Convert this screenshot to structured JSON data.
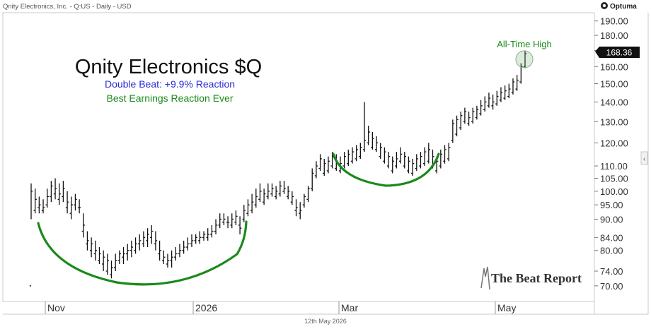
{
  "header": {
    "left": "Qnity Electronics, Inc. - Q:US - Daily - USD",
    "logo_text": "Optuma"
  },
  "footer": {
    "date": "12th May 2026"
  },
  "annotations": {
    "title": "Qnity Electronics $Q",
    "line1": "Double Beat: +9.9% Reaction",
    "line2": "Best Earnings Reaction Ever",
    "ath_label": "All-Time High"
  },
  "brand": {
    "name": "The Beat Report"
  },
  "colors": {
    "title": "#111111",
    "line1": "#2b2bd6",
    "green": "#1a8a1a",
    "bars": "#111111",
    "axis": "#333333"
  },
  "chart_data": {
    "type": "ohlc",
    "title": "Qnity Electronics $Q",
    "ylim": [
      66,
      196
    ],
    "y_scale": "log",
    "x_tick_labels": [
      "Nov",
      "2026",
      "Mar",
      "May"
    ],
    "y_tick_labels": [
      "190.00",
      "180.00",
      "170.00",
      "160.00",
      "150.00",
      "140.00",
      "130.00",
      "120.00",
      "110.00",
      "105.00",
      "100.00",
      "95.00",
      "90.00",
      "84.00",
      "80.00",
      "74.00",
      "70.00"
    ],
    "last_price_label": "168.36",
    "series": [
      {
        "values": [
          [
            70,
            103,
            90,
            100
          ],
          [
            93,
            101,
            92,
            97
          ],
          [
            94,
            98,
            92,
            95
          ],
          [
            93,
            97,
            92,
            94
          ],
          [
            95,
            101,
            94,
            98
          ],
          [
            98,
            104,
            96,
            102
          ],
          [
            99,
            105,
            97,
            101
          ],
          [
            97,
            103,
            95,
            99
          ],
          [
            98,
            104,
            96,
            101
          ],
          [
            94,
            100,
            92,
            96
          ],
          [
            92,
            98,
            90,
            95
          ],
          [
            95,
            99,
            93,
            97
          ],
          [
            94,
            97,
            92,
            94
          ],
          [
            86,
            92,
            84,
            88
          ],
          [
            82,
            86,
            80,
            83
          ],
          [
            80,
            84,
            78,
            82
          ],
          [
            79,
            83,
            77,
            80
          ],
          [
            77,
            81,
            76,
            79
          ],
          [
            76,
            80,
            74,
            78
          ],
          [
            74,
            79,
            73,
            77
          ],
          [
            73,
            77,
            72,
            75
          ],
          [
            75,
            79,
            74,
            77
          ],
          [
            77,
            80,
            76,
            79
          ],
          [
            78,
            81,
            76,
            79
          ],
          [
            79,
            82,
            77,
            80
          ],
          [
            80,
            83,
            78,
            81
          ],
          [
            80,
            84,
            79,
            82
          ],
          [
            82,
            85,
            80,
            83
          ],
          [
            82,
            86,
            81,
            84
          ],
          [
            83,
            87,
            81,
            85
          ],
          [
            84,
            88,
            82,
            86
          ],
          [
            82,
            86,
            80,
            83
          ],
          [
            79,
            83,
            77,
            80
          ],
          [
            77,
            80,
            76,
            78
          ],
          [
            76,
            79,
            75,
            77
          ],
          [
            77,
            80,
            75,
            78
          ],
          [
            78,
            81,
            77,
            79
          ],
          [
            79,
            82,
            78,
            80
          ],
          [
            80,
            83,
            79,
            81
          ],
          [
            81,
            84,
            80,
            82
          ],
          [
            82,
            85,
            81,
            83
          ],
          [
            83,
            85,
            82,
            84
          ],
          [
            83,
            86,
            82,
            84
          ],
          [
            84,
            86,
            83,
            85
          ],
          [
            84,
            87,
            83,
            85
          ],
          [
            85,
            88,
            84,
            86
          ],
          [
            86,
            90,
            85,
            88
          ],
          [
            88,
            92,
            87,
            90
          ],
          [
            89,
            92,
            88,
            90
          ],
          [
            89,
            91,
            87,
            89
          ],
          [
            88,
            92,
            87,
            90
          ],
          [
            89,
            93,
            88,
            91
          ],
          [
            88,
            91,
            85,
            87
          ],
          [
            90,
            95,
            89,
            93
          ],
          [
            92,
            97,
            91,
            95
          ],
          [
            93,
            99,
            92,
            96
          ],
          [
            95,
            101,
            94,
            98
          ],
          [
            97,
            103,
            96,
            100
          ],
          [
            96,
            101,
            95,
            99
          ],
          [
            98,
            103,
            97,
            100
          ],
          [
            99,
            103,
            98,
            101
          ],
          [
            98,
            102,
            97,
            100
          ],
          [
            99,
            104,
            98,
            102
          ],
          [
            100,
            104,
            99,
            101
          ],
          [
            98,
            102,
            97,
            100
          ],
          [
            96,
            100,
            95,
            98
          ],
          [
            93,
            97,
            91,
            94
          ],
          [
            92,
            96,
            90,
            93
          ],
          [
            95,
            99,
            94,
            98
          ],
          [
            97,
            102,
            96,
            101
          ],
          [
            101,
            109,
            100,
            107
          ],
          [
            106,
            112,
            105,
            110
          ],
          [
            109,
            115,
            108,
            113
          ],
          [
            107,
            113,
            106,
            111
          ],
          [
            108,
            114,
            107,
            112
          ],
          [
            110,
            116,
            109,
            114
          ],
          [
            109,
            115,
            108,
            112
          ],
          [
            108,
            114,
            107,
            111
          ],
          [
            110,
            116,
            109,
            114
          ],
          [
            111,
            117,
            110,
            115
          ],
          [
            112,
            118,
            111,
            116
          ],
          [
            113,
            119,
            112,
            117
          ],
          [
            114,
            120,
            113,
            118
          ],
          [
            117,
            140,
            116,
            121
          ],
          [
            120,
            128,
            119,
            125
          ],
          [
            118,
            125,
            117,
            122
          ],
          [
            117,
            123,
            116,
            120
          ],
          [
            114,
            120,
            113,
            118
          ],
          [
            112,
            118,
            111,
            116
          ],
          [
            110,
            116,
            109,
            114
          ],
          [
            108,
            114,
            107,
            112
          ],
          [
            110,
            116,
            109,
            113
          ],
          [
            112,
            118,
            111,
            115
          ],
          [
            110,
            116,
            109,
            114
          ],
          [
            108,
            114,
            107,
            112
          ],
          [
            107,
            113,
            106,
            111
          ],
          [
            109,
            115,
            108,
            113
          ],
          [
            110,
            116,
            109,
            114
          ],
          [
            111,
            118,
            110,
            116
          ],
          [
            112,
            120,
            111,
            117
          ],
          [
            110,
            117,
            109,
            114
          ],
          [
            108,
            114,
            107,
            112
          ],
          [
            110,
            117,
            109,
            115
          ],
          [
            112,
            119,
            111,
            117
          ],
          [
            113,
            120,
            112,
            118
          ],
          [
            121,
            131,
            120,
            129
          ],
          [
            124,
            133,
            123,
            131
          ],
          [
            127,
            135,
            126,
            133
          ],
          [
            130,
            137,
            129,
            135
          ],
          [
            129,
            135,
            128,
            132
          ],
          [
            130,
            137,
            129,
            135
          ],
          [
            132,
            138,
            131,
            136
          ],
          [
            134,
            141,
            133,
            138
          ],
          [
            136,
            143,
            135,
            140
          ],
          [
            138,
            145,
            137,
            142
          ],
          [
            138,
            144,
            136,
            140
          ],
          [
            139,
            146,
            138,
            143
          ],
          [
            141,
            148,
            140,
            145
          ],
          [
            142,
            149,
            141,
            146
          ],
          [
            143,
            150,
            142,
            147
          ],
          [
            145,
            153,
            144,
            151
          ],
          [
            147,
            155,
            146,
            152
          ],
          [
            151,
            162,
            150,
            160
          ],
          [
            160,
            170,
            159,
            168
          ]
        ]
      }
    ]
  }
}
